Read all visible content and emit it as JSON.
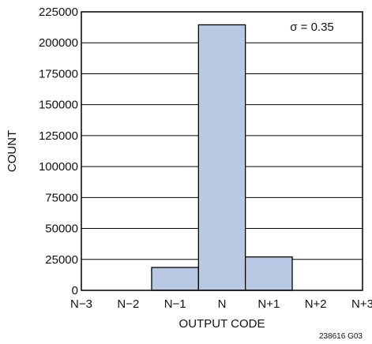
{
  "chart_data": {
    "type": "bar",
    "title": "",
    "xlabel": "OUTPUT CODE",
    "ylabel": "COUNT",
    "categories": [
      "N−3",
      "N−2",
      "N−1",
      "N",
      "N+1",
      "N+2",
      "N+3"
    ],
    "bars": [
      {
        "label": "N−1",
        "value": 18500
      },
      {
        "label": "N",
        "value": 214500
      },
      {
        "label": "N+1",
        "value": 27000
      }
    ],
    "ylim": [
      0,
      225000
    ],
    "yticks": [
      0,
      25000,
      50000,
      75000,
      100000,
      125000,
      150000,
      175000,
      200000,
      225000
    ],
    "ytick_labels": [
      "0",
      "25000",
      "50000",
      "75000",
      "100000",
      "125000",
      "150000",
      "175000",
      "200000",
      "225000"
    ],
    "annotation": "σ = 0.35",
    "figure_id": "238616 G03",
    "grid": true,
    "bar_color": "#b9c9e4",
    "grid_color": "#000000"
  }
}
